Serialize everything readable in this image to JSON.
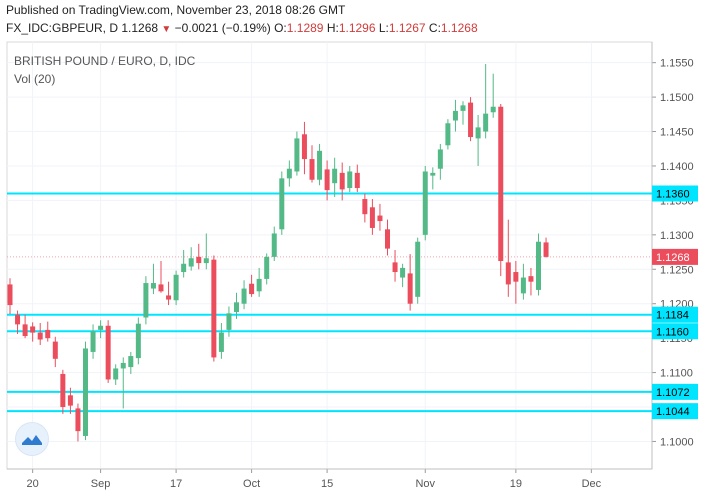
{
  "header": {
    "published": "Published on TradingView.com, November 23, 2018 08:26 GMT",
    "symbol": "FX_IDC:GBPEUR, D",
    "last": "1.1268",
    "change": "−0.0021 (−0.19%)",
    "o_label": "O:",
    "o": "1.1289",
    "h_label": "H:",
    "h": "1.1296",
    "l_label": "L:",
    "l": "1.1267",
    "c_label": "C:",
    "c": "1.1268"
  },
  "legend": {
    "title": "BRITISH POUND / EURO, D, IDC",
    "vol": "Vol (20)"
  },
  "colors": {
    "up": "#53b987",
    "down": "#eb4d5c",
    "hline": "#00e5ff",
    "axis": "#555555",
    "grid": "#f0f3fa",
    "last_price": "#eb4d5c"
  },
  "chart_data": {
    "type": "candlestick",
    "title": "BRITISH POUND / EURO, D, IDC",
    "ylim": [
      1.096,
      1.158
    ],
    "y_ticks": [
      "1.1000",
      "1.1050",
      "1.1100",
      "1.1150",
      "1.1200",
      "1.1250",
      "1.1300",
      "1.1350",
      "1.1400",
      "1.1450",
      "1.1500",
      "1.1550"
    ],
    "x_ticks": [
      {
        "label": "20",
        "index": 3
      },
      {
        "label": "Sep",
        "index": 12
      },
      {
        "label": "17",
        "index": 22
      },
      {
        "label": "Oct",
        "index": 32
      },
      {
        "label": "15",
        "index": 42
      },
      {
        "label": "Nov",
        "index": 55
      },
      {
        "label": "19",
        "index": 67
      },
      {
        "label": "Dec",
        "index": 77
      }
    ],
    "candles": [
      {
        "o": 1.1228,
        "h": 1.1237,
        "l": 1.1185,
        "c": 1.1198
      },
      {
        "o": 1.1184,
        "h": 1.119,
        "l": 1.1156,
        "c": 1.117
      },
      {
        "o": 1.117,
        "h": 1.1184,
        "l": 1.115,
        "c": 1.1153
      },
      {
        "o": 1.1167,
        "h": 1.1173,
        "l": 1.1145,
        "c": 1.1158
      },
      {
        "o": 1.1158,
        "h": 1.1172,
        "l": 1.114,
        "c": 1.1148
      },
      {
        "o": 1.1162,
        "h": 1.1174,
        "l": 1.1145,
        "c": 1.115
      },
      {
        "o": 1.1145,
        "h": 1.1152,
        "l": 1.1108,
        "c": 1.112
      },
      {
        "o": 1.1098,
        "h": 1.1104,
        "l": 1.104,
        "c": 1.105
      },
      {
        "o": 1.1067,
        "h": 1.1078,
        "l": 1.104,
        "c": 1.1052
      },
      {
        "o": 1.1048,
        "h": 1.1055,
        "l": 1.1,
        "c": 1.1015
      },
      {
        "o": 1.1008,
        "h": 1.1145,
        "l": 1.1002,
        "c": 1.1135
      },
      {
        "o": 1.113,
        "h": 1.117,
        "l": 1.112,
        "c": 1.116
      },
      {
        "o": 1.1162,
        "h": 1.1176,
        "l": 1.115,
        "c": 1.1168
      },
      {
        "o": 1.1168,
        "h": 1.1176,
        "l": 1.1085,
        "c": 1.109
      },
      {
        "o": 1.109,
        "h": 1.1112,
        "l": 1.1082,
        "c": 1.1106
      },
      {
        "o": 1.1106,
        "h": 1.1122,
        "l": 1.1048,
        "c": 1.1114
      },
      {
        "o": 1.1108,
        "h": 1.113,
        "l": 1.1098,
        "c": 1.1124
      },
      {
        "o": 1.1121,
        "h": 1.118,
        "l": 1.1112,
        "c": 1.1171
      },
      {
        "o": 1.118,
        "h": 1.124,
        "l": 1.117,
        "c": 1.123
      },
      {
        "o": 1.1222,
        "h": 1.1258,
        "l": 1.1214,
        "c": 1.123
      },
      {
        "o": 1.1228,
        "h": 1.1262,
        "l": 1.1216,
        "c": 1.1218
      },
      {
        "o": 1.1212,
        "h": 1.1232,
        "l": 1.1198,
        "c": 1.1206
      },
      {
        "o": 1.1205,
        "h": 1.1248,
        "l": 1.1198,
        "c": 1.1242
      },
      {
        "o": 1.1246,
        "h": 1.1278,
        "l": 1.1238,
        "c": 1.1258
      },
      {
        "o": 1.1254,
        "h": 1.1282,
        "l": 1.1248,
        "c": 1.1266
      },
      {
        "o": 1.1268,
        "h": 1.1287,
        "l": 1.125,
        "c": 1.1259
      },
      {
        "o": 1.1259,
        "h": 1.1302,
        "l": 1.125,
        "c": 1.1266
      },
      {
        "o": 1.1264,
        "h": 1.127,
        "l": 1.1116,
        "c": 1.1122
      },
      {
        "o": 1.113,
        "h": 1.1172,
        "l": 1.112,
        "c": 1.1158
      },
      {
        "o": 1.1162,
        "h": 1.1196,
        "l": 1.1152,
        "c": 1.1186
      },
      {
        "o": 1.1188,
        "h": 1.1216,
        "l": 1.1178,
        "c": 1.1202
      },
      {
        "o": 1.12,
        "h": 1.1234,
        "l": 1.1192,
        "c": 1.1222
      },
      {
        "o": 1.1229,
        "h": 1.1242,
        "l": 1.121,
        "c": 1.1214
      },
      {
        "o": 1.1218,
        "h": 1.1252,
        "l": 1.121,
        "c": 1.1236
      },
      {
        "o": 1.1236,
        "h": 1.1273,
        "l": 1.1228,
        "c": 1.1268
      },
      {
        "o": 1.1268,
        "h": 1.1312,
        "l": 1.1262,
        "c": 1.1302
      },
      {
        "o": 1.1308,
        "h": 1.1392,
        "l": 1.13,
        "c": 1.1382
      },
      {
        "o": 1.1382,
        "h": 1.1408,
        "l": 1.137,
        "c": 1.1396
      },
      {
        "o": 1.1392,
        "h": 1.145,
        "l": 1.1386,
        "c": 1.144
      },
      {
        "o": 1.1446,
        "h": 1.1464,
        "l": 1.1388,
        "c": 1.141
      },
      {
        "o": 1.141,
        "h": 1.143,
        "l": 1.1376,
        "c": 1.138
      },
      {
        "o": 1.138,
        "h": 1.1432,
        "l": 1.1372,
        "c": 1.1422
      },
      {
        "o": 1.1395,
        "h": 1.1408,
        "l": 1.135,
        "c": 1.1365
      },
      {
        "o": 1.1375,
        "h": 1.1412,
        "l": 1.1355,
        "c": 1.1396
      },
      {
        "o": 1.139,
        "h": 1.1405,
        "l": 1.135,
        "c": 1.1366
      },
      {
        "o": 1.1368,
        "h": 1.14,
        "l": 1.1362,
        "c": 1.1392
      },
      {
        "o": 1.139,
        "h": 1.1402,
        "l": 1.1362,
        "c": 1.1368
      },
      {
        "o": 1.1352,
        "h": 1.136,
        "l": 1.1318,
        "c": 1.133
      },
      {
        "o": 1.134,
        "h": 1.1352,
        "l": 1.13,
        "c": 1.131
      },
      {
        "o": 1.1328,
        "h": 1.1345,
        "l": 1.1306,
        "c": 1.132
      },
      {
        "o": 1.1308,
        "h": 1.1322,
        "l": 1.127,
        "c": 1.128
      },
      {
        "o": 1.126,
        "h": 1.1278,
        "l": 1.1232,
        "c": 1.1246
      },
      {
        "o": 1.1238,
        "h": 1.1258,
        "l": 1.1224,
        "c": 1.1252
      },
      {
        "o": 1.1244,
        "h": 1.1272,
        "l": 1.119,
        "c": 1.12
      },
      {
        "o": 1.121,
        "h": 1.1296,
        "l": 1.12,
        "c": 1.129
      },
      {
        "o": 1.13,
        "h": 1.14,
        "l": 1.1292,
        "c": 1.1392
      },
      {
        "o": 1.1386,
        "h": 1.1398,
        "l": 1.1366,
        "c": 1.139
      },
      {
        "o": 1.1396,
        "h": 1.1432,
        "l": 1.138,
        "c": 1.1424
      },
      {
        "o": 1.143,
        "h": 1.1468,
        "l": 1.1424,
        "c": 1.1462
      },
      {
        "o": 1.1466,
        "h": 1.1496,
        "l": 1.145,
        "c": 1.148
      },
      {
        "o": 1.148,
        "h": 1.1494,
        "l": 1.146,
        "c": 1.1488
      },
      {
        "o": 1.1492,
        "h": 1.15,
        "l": 1.1436,
        "c": 1.1442
      },
      {
        "o": 1.144,
        "h": 1.1474,
        "l": 1.14,
        "c": 1.1456
      },
      {
        "o": 1.145,
        "h": 1.1548,
        "l": 1.144,
        "c": 1.1476
      },
      {
        "o": 1.1478,
        "h": 1.1534,
        "l": 1.147,
        "c": 1.1486
      },
      {
        "o": 1.1486,
        "h": 1.149,
        "l": 1.124,
        "c": 1.1262
      },
      {
        "o": 1.126,
        "h": 1.1322,
        "l": 1.121,
        "c": 1.1228
      },
      {
        "o": 1.1246,
        "h": 1.1262,
        "l": 1.12,
        "c": 1.1232
      },
      {
        "o": 1.1215,
        "h": 1.1258,
        "l": 1.1206,
        "c": 1.1238
      },
      {
        "o": 1.124,
        "h": 1.1252,
        "l": 1.1212,
        "c": 1.1232
      },
      {
        "o": 1.122,
        "h": 1.1302,
        "l": 1.1212,
        "c": 1.129
      },
      {
        "o": 1.1289,
        "h": 1.1296,
        "l": 1.1267,
        "c": 1.1268
      }
    ],
    "horizontal_lines": [
      1.136,
      1.1184,
      1.116,
      1.1072,
      1.1044
    ],
    "price_labels": [
      {
        "value": 1.136,
        "label": "1.1360",
        "kind": "hline"
      },
      {
        "value": 1.1268,
        "label": "1.1268",
        "kind": "last"
      },
      {
        "value": 1.1184,
        "label": "1.1184",
        "kind": "hline"
      },
      {
        "value": 1.116,
        "label": "1.1160",
        "kind": "hline"
      },
      {
        "value": 1.1072,
        "label": "1.1072",
        "kind": "hline"
      },
      {
        "value": 1.1044,
        "label": "1.1044",
        "kind": "hline"
      }
    ],
    "last_price": 1.1268
  }
}
